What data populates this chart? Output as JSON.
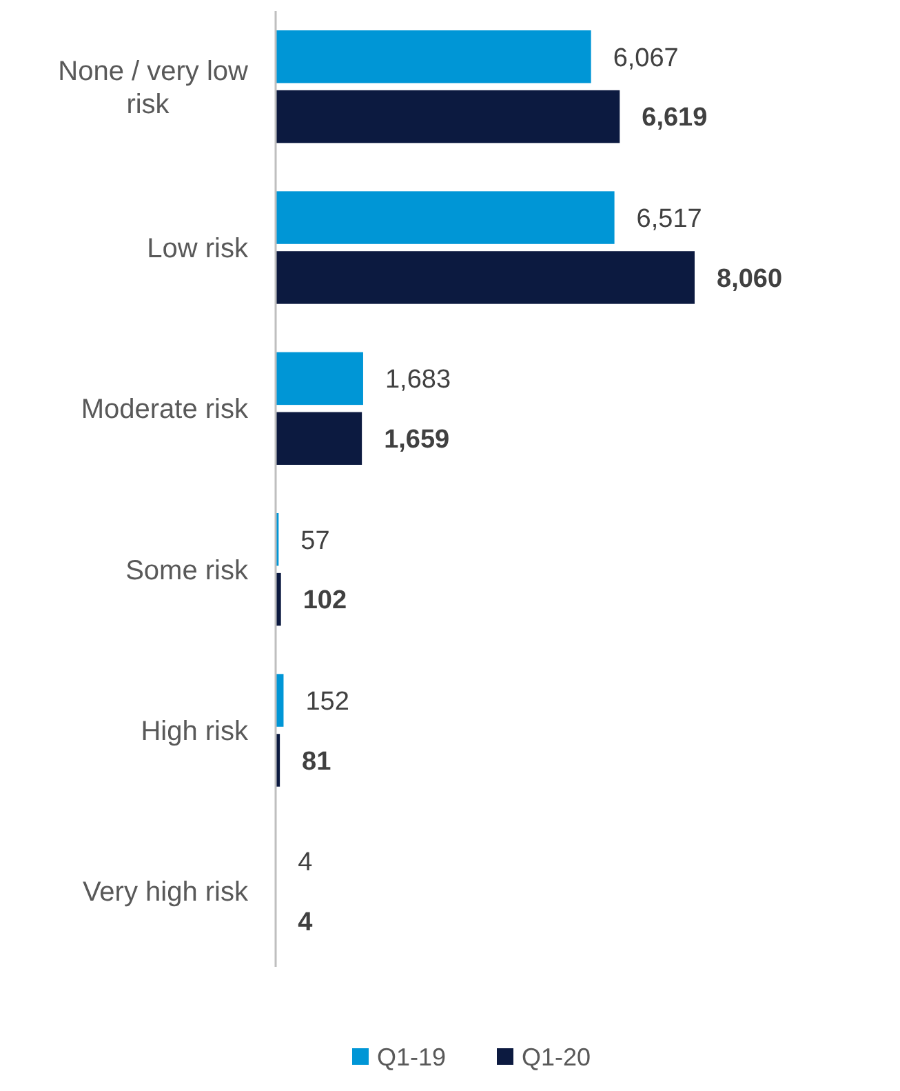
{
  "chart_data": {
    "type": "bar",
    "orientation": "horizontal",
    "categories": [
      "None / very low risk",
      "Low risk",
      "Moderate risk",
      "Some risk",
      "High risk",
      "Very high risk"
    ],
    "series": [
      {
        "name": "Q1-19",
        "color": "#0096d6",
        "values": [
          6067,
          6517,
          1683,
          57,
          152,
          4
        ],
        "value_labels": [
          "6,067",
          "6,517",
          "1,683",
          "57",
          "152",
          "4"
        ]
      },
      {
        "name": "Q1-20",
        "color": "#0c1a40",
        "values": [
          6619,
          8060,
          1659,
          102,
          81,
          4
        ],
        "value_labels": [
          "6,619",
          "8,060",
          "1,659",
          "102",
          "81",
          "4"
        ]
      }
    ],
    "legend": "bottom"
  }
}
